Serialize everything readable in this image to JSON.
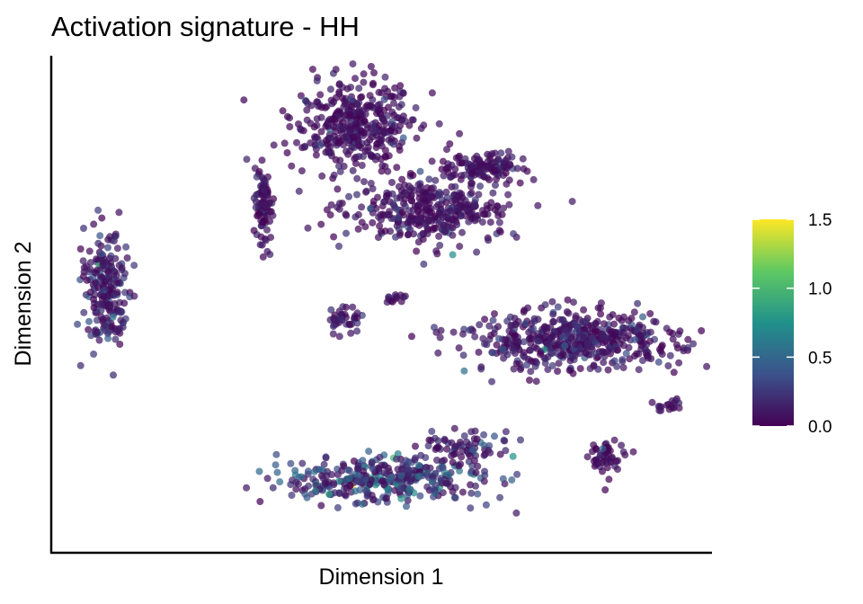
{
  "chart_data": {
    "type": "scatter",
    "title": "Activation signature - HH",
    "xlabel": "Dimension 1",
    "ylabel": "Dimension 2",
    "grid": false,
    "legend_position": "right",
    "colorbar": {
      "palette": "viridis",
      "range": [
        0,
        1.5
      ],
      "ticks": [
        0.0,
        0.5,
        1.0,
        1.5
      ],
      "tick_labels": [
        "0.0",
        "0.5",
        "1.0",
        "1.5"
      ],
      "colors": [
        "#440154",
        "#3b528b",
        "#21918c",
        "#5ec962",
        "#fde725"
      ]
    },
    "xlim": [
      0,
      100
    ],
    "ylim": [
      0,
      100
    ],
    "clusters": [
      {
        "cx": 46.0,
        "cy": 86.5,
        "sx": 6.5,
        "sy": 6.0,
        "n": 380,
        "mean_value": 0.1
      },
      {
        "cx": 32.0,
        "cy": 70.5,
        "sx": 1.0,
        "sy": 5.0,
        "n": 90,
        "mean_value": 0.1
      },
      {
        "cx": 57.5,
        "cy": 69.0,
        "sx": 8.5,
        "sy": 4.5,
        "n": 360,
        "mean_value": 0.12
      },
      {
        "cx": 65.0,
        "cy": 78.0,
        "sx": 4.5,
        "sy": 2.0,
        "n": 120,
        "mean_value": 0.1
      },
      {
        "cx": 80.0,
        "cy": 42.5,
        "sx": 11.0,
        "sy": 4.2,
        "n": 520,
        "mean_value": 0.15
      },
      {
        "cx": 8.0,
        "cy": 53.0,
        "sx": 2.3,
        "sy": 7.5,
        "n": 220,
        "mean_value": 0.2
      },
      {
        "cx": 50.5,
        "cy": 14.0,
        "sx": 10.5,
        "sy": 3.0,
        "n": 360,
        "mean_value": 0.3
      },
      {
        "cx": 63.0,
        "cy": 21.0,
        "sx": 4.5,
        "sy": 2.5,
        "n": 70,
        "mean_value": 0.2
      },
      {
        "cx": 44.5,
        "cy": 47.0,
        "sx": 1.8,
        "sy": 1.8,
        "n": 40,
        "mean_value": 0.15
      },
      {
        "cx": 52.0,
        "cy": 51.5,
        "sx": 1.2,
        "sy": 0.8,
        "n": 14,
        "mean_value": 0.1
      },
      {
        "cx": 84.5,
        "cy": 18.5,
        "sx": 2.0,
        "sy": 2.0,
        "n": 50,
        "mean_value": 0.1
      },
      {
        "cx": 94.0,
        "cy": 29.0,
        "sx": 1.3,
        "sy": 1.0,
        "n": 18,
        "mean_value": 0.1
      }
    ]
  }
}
